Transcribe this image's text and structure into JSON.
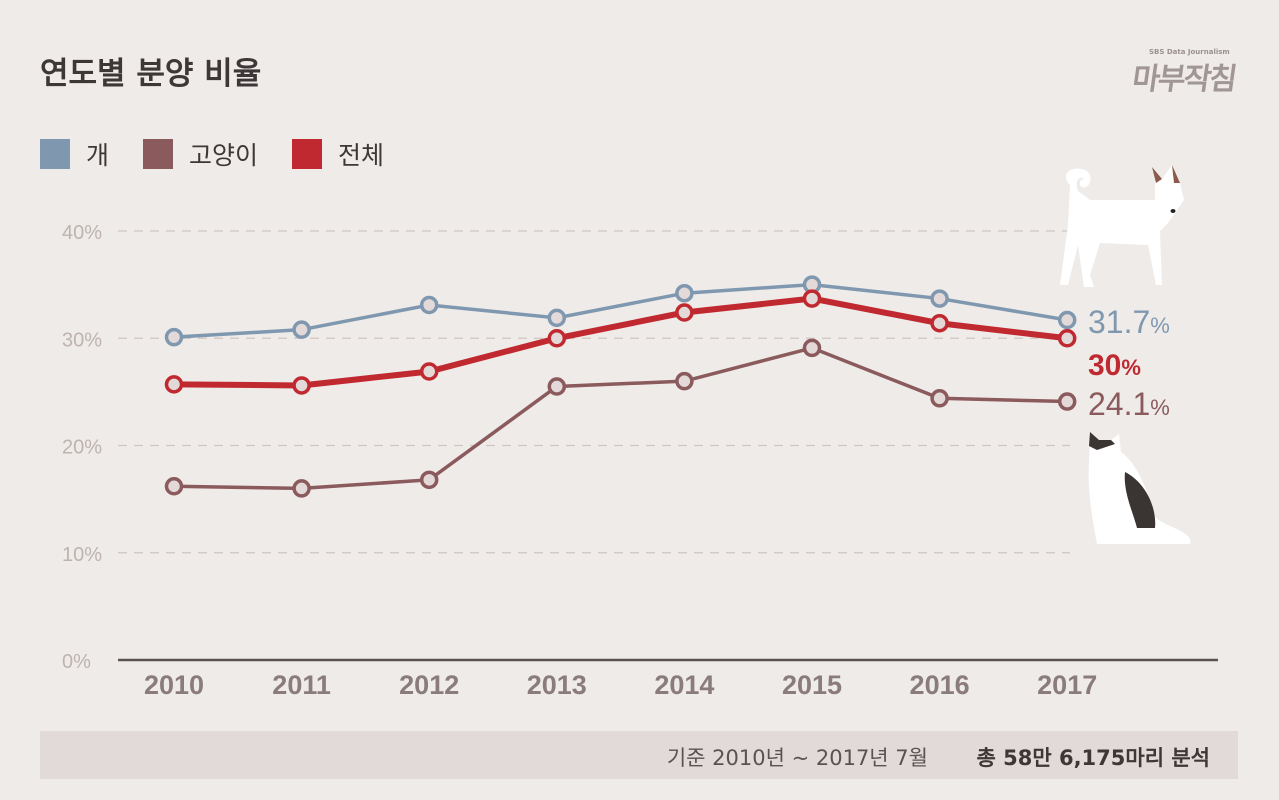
{
  "title": "연도별 분양 비율",
  "logo": {
    "small": "SBS Data Journalism",
    "main": "마부작침"
  },
  "chart_data": {
    "type": "line",
    "title": "연도별 분양 비율",
    "categories": [
      "2010",
      "2011",
      "2012",
      "2013",
      "2014",
      "2015",
      "2016",
      "2017"
    ],
    "ylim": [
      0,
      40
    ],
    "yticks": [
      "0%",
      "10%",
      "20%",
      "30%",
      "40%"
    ],
    "grid": true,
    "legend_placement": "top-left",
    "series": [
      {
        "name": "개",
        "color": "#7f98b0",
        "values": [
          30.1,
          30.8,
          33.1,
          31.9,
          34.2,
          35.0,
          33.7,
          31.7
        ],
        "end_label": "31.7",
        "unit": "%"
      },
      {
        "name": "고양이",
        "color": "#8b5a5c",
        "values": [
          16.2,
          16.0,
          16.8,
          25.5,
          26.0,
          29.1,
          24.4,
          24.1
        ],
        "end_label": "24.1",
        "unit": "%"
      },
      {
        "name": "전체",
        "color": "#c0292f",
        "values": [
          25.7,
          25.6,
          26.9,
          30.0,
          32.4,
          33.7,
          31.4,
          30.0
        ],
        "end_label": "30",
        "unit": "%"
      }
    ]
  },
  "footer": {
    "basis": "기준 2010년 ~ 2017년 7월",
    "total": "총 58만 6,175마리 분석"
  },
  "icons": {
    "dog": "dog-icon",
    "cat": "cat-icon"
  }
}
